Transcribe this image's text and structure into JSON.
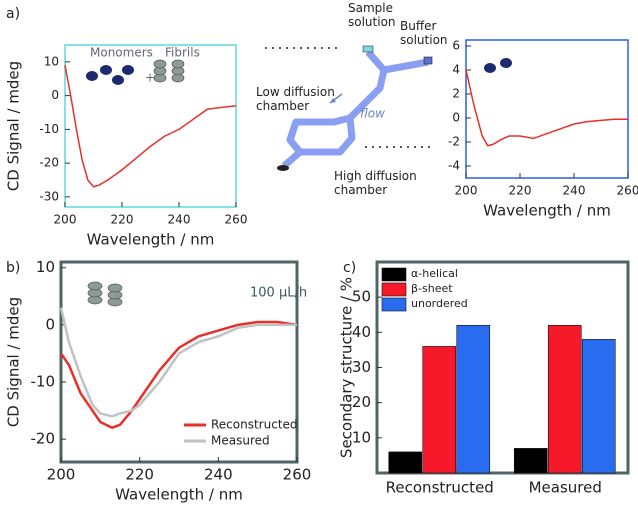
{
  "panel_labels": [
    "a)",
    "b)",
    "c)"
  ],
  "diagram": {
    "labels": [
      "Sample\nsolution",
      "Buffer\nsolution",
      "Low diffusion\nchamber",
      "flow",
      "High diffusion\nchamber"
    ]
  },
  "chart_data": [
    {
      "type": "line",
      "xlabel": "Wavelength / nm",
      "ylabel": "CD Signal / mdeg",
      "frame_color": "#5ed8dc",
      "x": [
        200,
        202,
        204,
        206,
        208,
        210,
        212,
        215,
        220,
        225,
        230,
        235,
        240,
        245,
        250,
        255,
        260
      ],
      "xlim": [
        200,
        260
      ],
      "xticks": [
        200,
        220,
        240,
        260
      ],
      "ylim": [
        -33,
        15
      ],
      "yticks": [
        10,
        0,
        -10,
        -20,
        -30
      ],
      "series": [
        {
          "color": "#e8302a",
          "values": [
            9,
            0,
            -10,
            -19,
            -25,
            -27,
            -26.5,
            -25,
            -22,
            -18.5,
            -15,
            -12,
            -10,
            -7,
            -4,
            -3.5,
            -3
          ]
        }
      ],
      "annotations": [
        "Monomers",
        "+",
        "Fibrils"
      ]
    },
    {
      "type": "line",
      "xlabel": "Wavelength / nm",
      "frame_color": "#2a5ee8",
      "x": [
        200,
        203,
        206,
        208,
        210,
        213,
        216,
        220,
        225,
        230,
        235,
        240,
        245,
        250,
        255,
        260
      ],
      "xlim": [
        200,
        260
      ],
      "xticks": [
        200,
        220,
        240,
        260
      ],
      "ylim": [
        -5,
        6.5
      ],
      "yticks": [
        6,
        4,
        2,
        0,
        -2,
        -4
      ],
      "series": [
        {
          "color": "#e8302a",
          "values": [
            4,
            1,
            -1.5,
            -2.3,
            -2.2,
            -1.8,
            -1.5,
            -1.5,
            -1.7,
            -1.3,
            -0.9,
            -0.5,
            -0.3,
            -0.2,
            -0.1,
            -0.1
          ]
        }
      ]
    },
    {
      "type": "line",
      "xlabel": "Wavelength / nm",
      "ylabel": "CD Signal / mdeg",
      "frame_color": "#4f6466",
      "legend": "lower right",
      "x": [
        200,
        202,
        205,
        208,
        210,
        213,
        215,
        218,
        220,
        225,
        230,
        235,
        240,
        245,
        250,
        255,
        260
      ],
      "xlim": [
        200,
        260
      ],
      "xticks": [
        200,
        220,
        240,
        260
      ],
      "ylim": [
        -24,
        11
      ],
      "yticks": [
        10,
        0,
        -10,
        -20
      ],
      "series": [
        {
          "name": "Reconstructed",
          "color": "#e8302a",
          "values": [
            -5,
            -7,
            -12,
            -15,
            -17,
            -18,
            -17.5,
            -15,
            -13,
            -8,
            -4,
            -2,
            -1,
            0,
            0.5,
            0.5,
            0
          ]
        },
        {
          "name": "Measured",
          "color": "#bfc3c3",
          "values": [
            3,
            -3,
            -9,
            -14,
            -15.5,
            -16,
            -15.5,
            -15,
            -14,
            -10,
            -5,
            -3,
            -2,
            -0.5,
            0,
            0,
            0
          ]
        }
      ],
      "annotations": [
        "100 µL/h"
      ]
    },
    {
      "type": "bar",
      "ylabel": "Secondary structure / %",
      "frame_color": "#4f6466",
      "legend": "upper left",
      "categories": [
        "Reconstructed",
        "Measured"
      ],
      "ylim": [
        0,
        60
      ],
      "yticks": [
        10,
        20,
        30,
        40,
        50
      ],
      "series": [
        {
          "name": "α-helical",
          "color": "#000000",
          "values": [
            6,
            7
          ]
        },
        {
          "name": "β-sheet",
          "color": "#f5192a",
          "values": [
            36,
            42
          ]
        },
        {
          "name": "unordered",
          "color": "#2a6cf0",
          "values": [
            42,
            38
          ]
        }
      ]
    }
  ]
}
